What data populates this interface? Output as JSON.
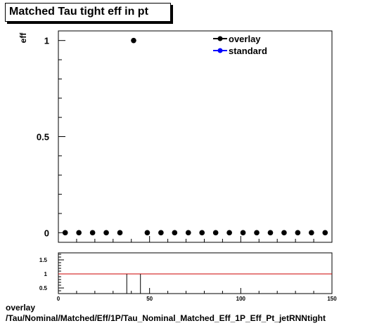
{
  "chart_data": [
    {
      "type": "scatter",
      "title": "Matched Tau tight eff in pt",
      "ylabel": "eff",
      "xlim": [
        0,
        150
      ],
      "ylim": [
        -0.05,
        1.05
      ],
      "y_ticks": [
        0,
        0.5,
        1
      ],
      "y_tick_labels": [
        "0",
        "0.5",
        "1"
      ],
      "legend": {
        "placement": "top-right",
        "entries": [
          "overlay",
          "standard"
        ]
      },
      "series": [
        {
          "name": "overlay",
          "color": "#000000",
          "x": [
            3.75,
            11.25,
            18.75,
            26.25,
            33.75,
            41.25,
            48.75,
            56.25,
            63.75,
            71.25,
            78.75,
            86.25,
            93.75,
            101.25,
            108.75,
            116.25,
            123.75,
            131.25,
            138.75,
            146.25
          ],
          "y": [
            0,
            0,
            0,
            0,
            0,
            1,
            0,
            0,
            0,
            0,
            0,
            0,
            0,
            0,
            0,
            0,
            0,
            0,
            0,
            0
          ]
        },
        {
          "name": "standard",
          "color": "#0000ff",
          "x": [],
          "y": []
        }
      ]
    },
    {
      "type": "line",
      "xlim": [
        0,
        150
      ],
      "ylim": [
        0.3,
        1.75
      ],
      "x_ticks": [
        0,
        50,
        100,
        150
      ],
      "x_tick_labels": [
        "0",
        "50",
        "100",
        "150"
      ],
      "y_ticks": [
        0.5,
        1,
        1.5
      ],
      "y_tick_labels": [
        "0.5",
        "1",
        "1.5"
      ],
      "reference_line": {
        "y": 1,
        "color": "#cc0000"
      },
      "segments": [
        {
          "x_start": 0,
          "x_end": 37.5,
          "y": 1
        },
        {
          "x_start": 45,
          "x_end": 150,
          "y": 1
        }
      ],
      "drops": [
        37.5,
        45
      ]
    }
  ],
  "footer": {
    "line1": "overlay",
    "line2": "/Tau/Nominal/Matched/Eff/1P/Tau_Nominal_Matched_Eff_1P_Eff_Pt_jetRNNtight"
  }
}
